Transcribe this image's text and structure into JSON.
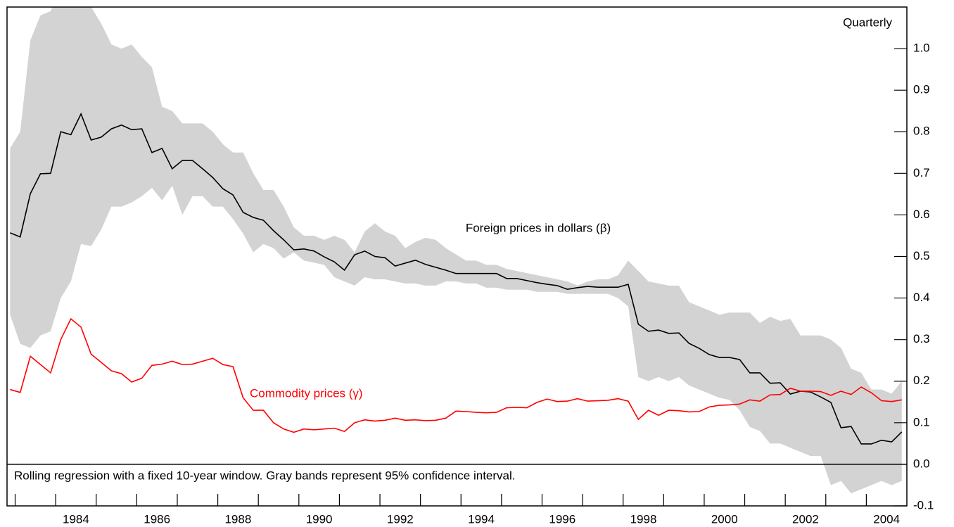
{
  "chart_data": {
    "type": "line",
    "subtitle": "Quarterly",
    "note": "Rolling regression with a fixed 10-year window. Gray bands represent 95% confidence interval.",
    "x": [
      1982.875,
      1983.125,
      1983.375,
      1983.625,
      1983.875,
      1984.125,
      1984.375,
      1984.625,
      1984.875,
      1985.125,
      1985.375,
      1985.625,
      1985.875,
      1986.125,
      1986.375,
      1986.625,
      1986.875,
      1987.125,
      1987.375,
      1987.625,
      1987.875,
      1988.125,
      1988.375,
      1988.625,
      1988.875,
      1989.125,
      1989.375,
      1989.625,
      1989.875,
      1990.125,
      1990.375,
      1990.625,
      1990.875,
      1991.125,
      1991.375,
      1991.625,
      1991.875,
      1992.125,
      1992.375,
      1992.625,
      1992.875,
      1993.125,
      1993.375,
      1993.625,
      1993.875,
      1994.125,
      1994.375,
      1994.625,
      1994.875,
      1995.125,
      1995.375,
      1995.625,
      1995.875,
      1996.125,
      1996.375,
      1996.625,
      1996.875,
      1997.125,
      1997.375,
      1997.625,
      1997.875,
      1998.125,
      1998.375,
      1998.625,
      1998.875,
      1999.125,
      1999.375,
      1999.625,
      1999.875,
      2000.125,
      2000.375,
      2000.625,
      2000.875,
      2001.125,
      2001.375,
      2001.625,
      2001.875,
      2002.125,
      2002.375,
      2002.625,
      2002.875,
      2003.125,
      2003.375,
      2003.625,
      2003.875,
      2004.125,
      2004.375,
      2004.625,
      2004.875
    ],
    "series": [
      {
        "name": "Foreign prices in dollars (β)",
        "color": "#000000",
        "band_color": "#d3d3d3",
        "values": [
          0.557,
          0.547,
          0.651,
          0.699,
          0.7,
          0.8,
          0.793,
          0.843,
          0.78,
          0.787,
          0.807,
          0.816,
          0.805,
          0.807,
          0.75,
          0.76,
          0.711,
          0.731,
          0.731,
          0.711,
          0.69,
          0.663,
          0.648,
          0.606,
          0.594,
          0.587,
          0.562,
          0.54,
          0.516,
          0.518,
          0.513,
          0.499,
          0.487,
          0.467,
          0.504,
          0.513,
          0.5,
          0.497,
          0.477,
          0.484,
          0.491,
          0.481,
          0.474,
          0.467,
          0.459,
          0.459,
          0.459,
          0.459,
          0.459,
          0.447,
          0.447,
          0.442,
          0.437,
          0.433,
          0.43,
          0.421,
          0.425,
          0.428,
          0.426,
          0.426,
          0.426,
          0.433,
          0.337,
          0.32,
          0.323,
          0.315,
          0.316,
          0.291,
          0.279,
          0.264,
          0.257,
          0.257,
          0.252,
          0.22,
          0.22,
          0.195,
          0.196,
          0.169,
          0.176,
          0.174,
          0.162,
          0.149,
          0.088,
          0.091,
          0.049,
          0.049,
          0.058,
          0.054,
          0.078
        ],
        "upper": [
          0.76,
          0.8,
          1.02,
          1.08,
          1.09,
          1.15,
          1.2,
          1.2,
          1.1,
          1.06,
          1.01,
          1.0,
          1.01,
          0.98,
          0.955,
          0.86,
          0.85,
          0.82,
          0.82,
          0.82,
          0.8,
          0.77,
          0.75,
          0.75,
          0.7,
          0.66,
          0.66,
          0.62,
          0.57,
          0.55,
          0.55,
          0.54,
          0.55,
          0.54,
          0.51,
          0.56,
          0.58,
          0.56,
          0.55,
          0.52,
          0.535,
          0.545,
          0.54,
          0.52,
          0.505,
          0.49,
          0.49,
          0.48,
          0.48,
          0.47,
          0.465,
          0.46,
          0.455,
          0.45,
          0.445,
          0.44,
          0.43,
          0.44,
          0.445,
          0.445,
          0.455,
          0.49,
          0.465,
          0.44,
          0.435,
          0.43,
          0.43,
          0.39,
          0.38,
          0.37,
          0.36,
          0.365,
          0.365,
          0.365,
          0.34,
          0.355,
          0.345,
          0.35,
          0.31,
          0.31,
          0.31,
          0.3,
          0.28,
          0.23,
          0.22,
          0.18,
          0.18,
          0.17,
          0.2
        ],
        "lower": [
          0.36,
          0.29,
          0.28,
          0.31,
          0.32,
          0.4,
          0.44,
          0.53,
          0.525,
          0.565,
          0.62,
          0.62,
          0.63,
          0.645,
          0.665,
          0.635,
          0.67,
          0.6,
          0.645,
          0.645,
          0.62,
          0.62,
          0.59,
          0.555,
          0.51,
          0.53,
          0.52,
          0.495,
          0.51,
          0.49,
          0.485,
          0.48,
          0.45,
          0.44,
          0.43,
          0.45,
          0.445,
          0.445,
          0.44,
          0.435,
          0.435,
          0.43,
          0.43,
          0.44,
          0.44,
          0.435,
          0.435,
          0.425,
          0.425,
          0.42,
          0.42,
          0.42,
          0.415,
          0.415,
          0.415,
          0.41,
          0.41,
          0.41,
          0.41,
          0.41,
          0.4,
          0.38,
          0.21,
          0.2,
          0.21,
          0.2,
          0.21,
          0.19,
          0.18,
          0.17,
          0.16,
          0.155,
          0.13,
          0.09,
          0.08,
          0.05,
          0.05,
          0.04,
          0.03,
          0.02,
          0.02,
          -0.05,
          -0.04,
          -0.07,
          -0.06,
          -0.05,
          -0.04,
          -0.05,
          -0.04
        ]
      },
      {
        "name": "Commodity prices (γ)",
        "color": "#ff0000",
        "values": [
          0.18,
          0.173,
          0.26,
          0.24,
          0.22,
          0.3,
          0.35,
          0.33,
          0.265,
          0.245,
          0.225,
          0.218,
          0.198,
          0.207,
          0.238,
          0.241,
          0.248,
          0.24,
          0.241,
          0.248,
          0.255,
          0.24,
          0.235,
          0.16,
          0.13,
          0.13,
          0.1,
          0.085,
          0.077,
          0.085,
          0.083,
          0.085,
          0.087,
          0.079,
          0.1,
          0.107,
          0.104,
          0.106,
          0.111,
          0.106,
          0.107,
          0.105,
          0.106,
          0.111,
          0.128,
          0.127,
          0.125,
          0.124,
          0.125,
          0.136,
          0.137,
          0.136,
          0.149,
          0.157,
          0.151,
          0.152,
          0.158,
          0.152,
          0.153,
          0.154,
          0.158,
          0.152,
          0.108,
          0.13,
          0.118,
          0.13,
          0.129,
          0.126,
          0.127,
          0.138,
          0.142,
          0.143,
          0.145,
          0.155,
          0.152,
          0.167,
          0.168,
          0.183,
          0.176,
          0.176,
          0.175,
          0.166,
          0.176,
          0.168,
          0.186,
          0.172,
          0.153,
          0.151,
          0.155
        ]
      }
    ],
    "xlim": [
      1982.8,
      2005
    ],
    "xticks": [
      {
        "value": 1984.5,
        "label": "1984"
      },
      {
        "value": 1986.5,
        "label": "1986"
      },
      {
        "value": 1988.5,
        "label": "1988"
      },
      {
        "value": 1990.5,
        "label": "1990"
      },
      {
        "value": 1992.5,
        "label": "1992"
      },
      {
        "value": 1994.5,
        "label": "1994"
      },
      {
        "value": 1996.5,
        "label": "1996"
      },
      {
        "value": 1998.5,
        "label": "1998"
      },
      {
        "value": 2000.5,
        "label": "2000"
      },
      {
        "value": 2002.5,
        "label": "2002"
      },
      {
        "value": 2004.5,
        "label": "2004"
      }
    ],
    "xminor_ticks": [
      1983,
      1984,
      1985,
      1986,
      1987,
      1988,
      1989,
      1990,
      1991,
      1992,
      1993,
      1994,
      1995,
      1996,
      1997,
      1998,
      1999,
      2000,
      2001,
      2002,
      2003,
      2004
    ],
    "ylim": [
      -0.1,
      1.1
    ],
    "yticks": [
      {
        "value": 1,
        "label": "1.0"
      },
      0.9,
      0.8,
      0.7,
      0.6,
      0.5,
      0.4,
      0.3,
      0.2,
      0.1,
      {
        "value": 0,
        "label": "0.0"
      },
      -0.1
    ]
  }
}
